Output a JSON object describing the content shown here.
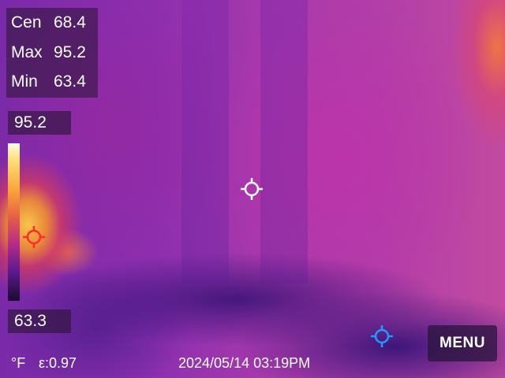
{
  "readout": {
    "center_label": "Cen",
    "center_value": "68.4",
    "max_label": "Max",
    "max_value": "95.2",
    "min_label": "Min",
    "min_value": "63.4"
  },
  "scale": {
    "high": "95.2",
    "low": "63.3"
  },
  "icons": {
    "center_crosshair": "crosshair-icon-white",
    "hot_marker": "crosshair-icon-red",
    "cold_marker": "crosshair-icon-blue"
  },
  "colors": {
    "hot": "#ff2a2a",
    "cold": "#1e9bff",
    "center": "#ffffff"
  },
  "menu": {
    "label": "MENU"
  },
  "status": {
    "unit": "°F",
    "emissivity": "ε:0.97",
    "datetime": "2024/05/14 03:19PM"
  }
}
